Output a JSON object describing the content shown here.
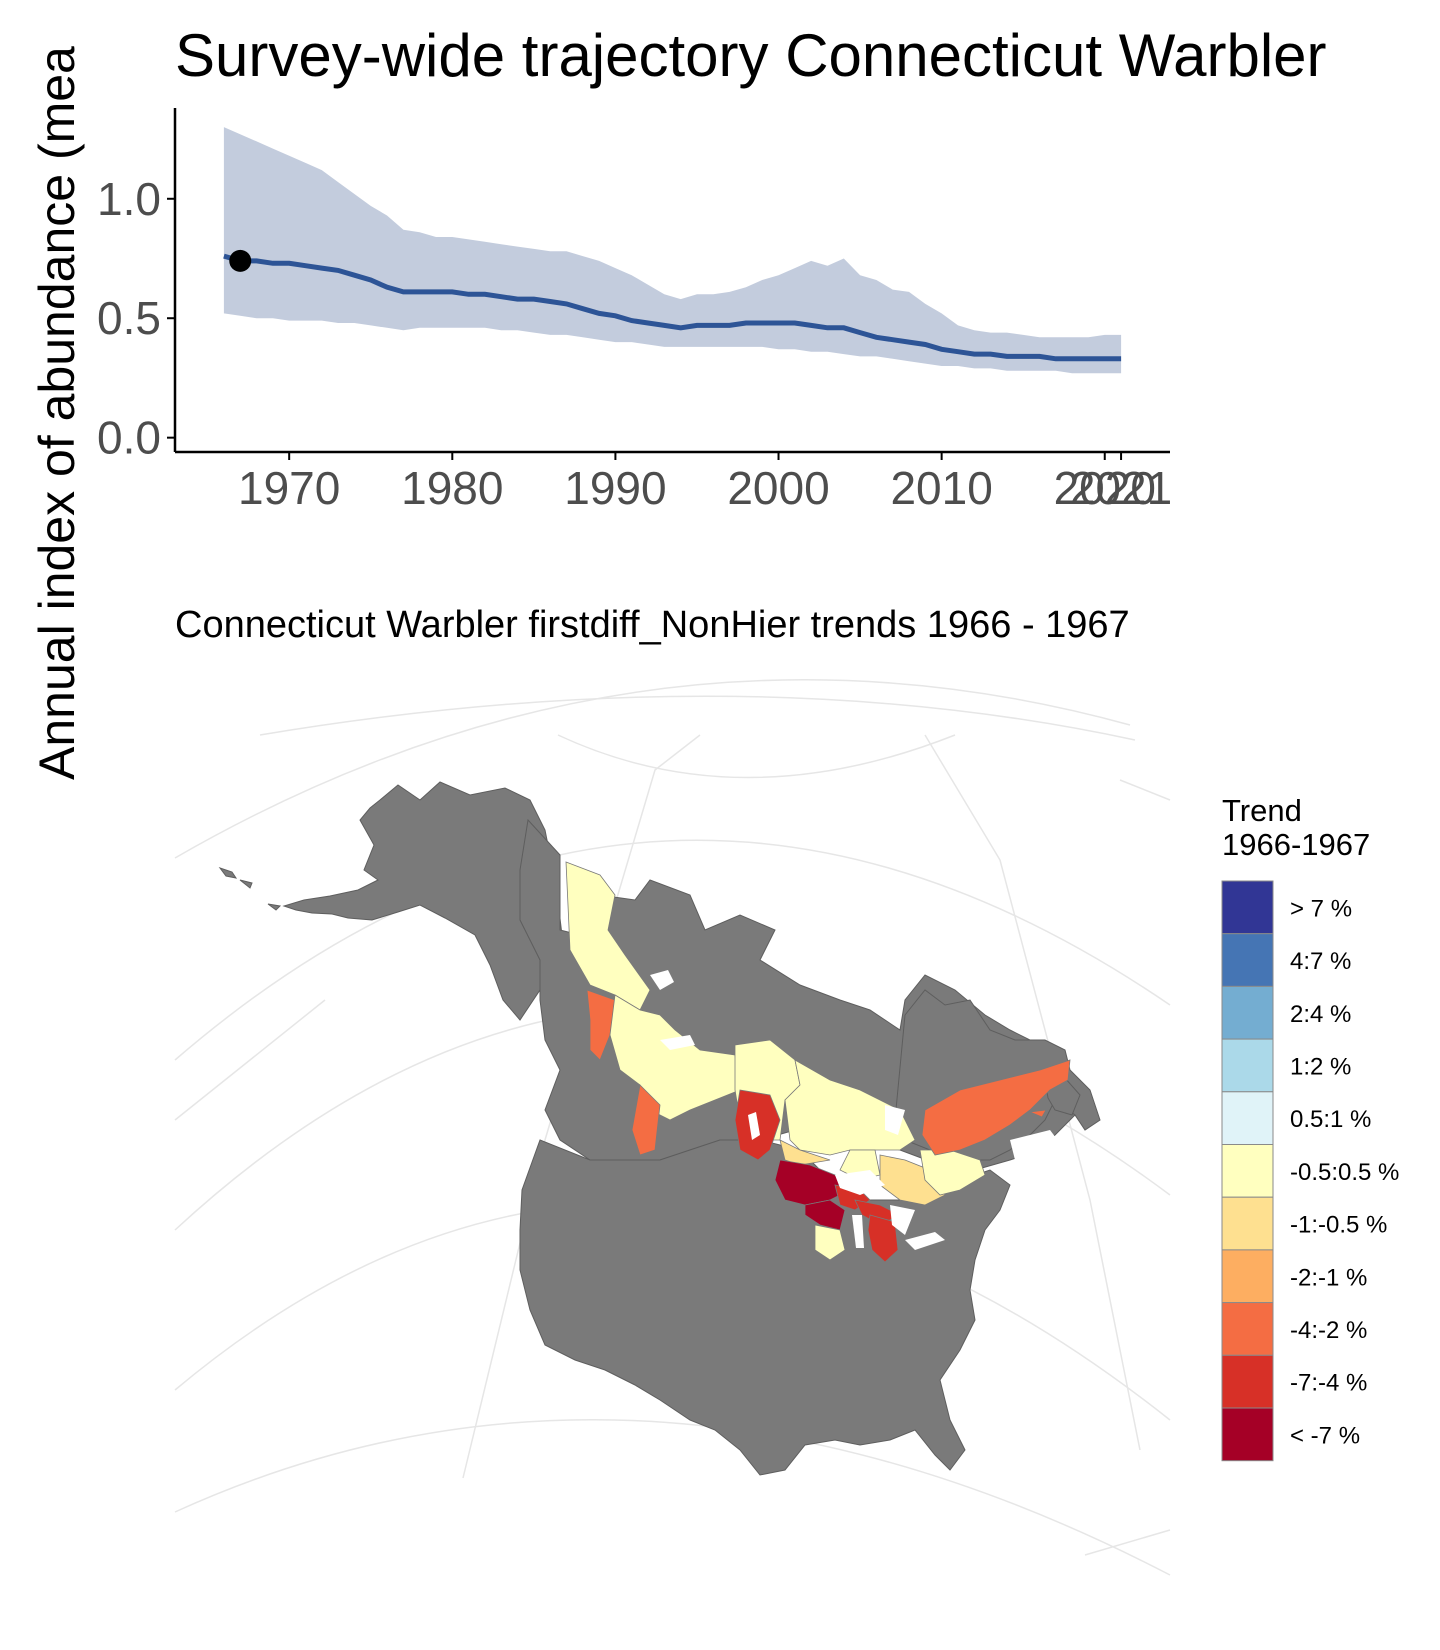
{
  "colors": {
    "ribbon": "#c3ccdd",
    "line": "#2d5496",
    "point": "#000000",
    "land": "#7a7a7a",
    "graticule": "#e6e6e6",
    "axis": "#000000",
    "tick_label": "#4d4d4d"
  },
  "chart_data": [
    {
      "type": "line",
      "title": "Survey-wide trajectory Connecticut Warbler",
      "ylabel": "Annual index of abundance (mea",
      "xlabel": "",
      "xlim": [
        1963,
        2024
      ],
      "ylim": [
        -0.06,
        1.38
      ],
      "x_ticks": [
        1970,
        1980,
        1990,
        2000,
        2010,
        2020,
        2021
      ],
      "x_tick_labels": [
        "1970",
        "1980",
        "1990",
        "2000",
        "2010",
        "2020",
        "2021"
      ],
      "y_ticks": [
        0.0,
        0.5,
        1.0
      ],
      "y_tick_labels": [
        "0.0",
        "0.5",
        "1.0"
      ],
      "grid": false,
      "series": [
        {
          "x": [
            1966,
            1967,
            1968,
            1969,
            1970,
            1971,
            1972,
            1973,
            1974,
            1975,
            1976,
            1977,
            1978,
            1979,
            1980,
            1981,
            1982,
            1983,
            1984,
            1985,
            1986,
            1987,
            1988,
            1989,
            1990,
            1991,
            1992,
            1993,
            1994,
            1995,
            1996,
            1997,
            1998,
            1999,
            2000,
            2001,
            2002,
            2003,
            2004,
            2005,
            2006,
            2007,
            2008,
            2009,
            2010,
            2011,
            2012,
            2013,
            2014,
            2015,
            2016,
            2017,
            2018,
            2019,
            2020,
            2021
          ],
          "values": [
            0.76,
            0.74,
            0.74,
            0.73,
            0.73,
            0.72,
            0.71,
            0.7,
            0.68,
            0.66,
            0.63,
            0.61,
            0.61,
            0.61,
            0.61,
            0.6,
            0.6,
            0.59,
            0.58,
            0.58,
            0.57,
            0.56,
            0.54,
            0.52,
            0.51,
            0.49,
            0.48,
            0.47,
            0.46,
            0.47,
            0.47,
            0.47,
            0.48,
            0.48,
            0.48,
            0.48,
            0.47,
            0.46,
            0.46,
            0.44,
            0.42,
            0.41,
            0.4,
            0.39,
            0.37,
            0.36,
            0.35,
            0.35,
            0.34,
            0.34,
            0.34,
            0.33,
            0.33,
            0.33,
            0.33,
            0.33
          ],
          "lower": [
            0.52,
            0.51,
            0.5,
            0.5,
            0.49,
            0.49,
            0.49,
            0.48,
            0.48,
            0.47,
            0.46,
            0.45,
            0.46,
            0.46,
            0.46,
            0.46,
            0.46,
            0.45,
            0.45,
            0.44,
            0.43,
            0.43,
            0.42,
            0.41,
            0.4,
            0.4,
            0.39,
            0.38,
            0.38,
            0.38,
            0.38,
            0.38,
            0.38,
            0.38,
            0.37,
            0.37,
            0.36,
            0.36,
            0.35,
            0.34,
            0.34,
            0.33,
            0.32,
            0.31,
            0.3,
            0.3,
            0.29,
            0.29,
            0.28,
            0.28,
            0.28,
            0.28,
            0.27,
            0.27,
            0.27,
            0.27
          ],
          "upper": [
            1.3,
            1.27,
            1.24,
            1.21,
            1.18,
            1.15,
            1.12,
            1.07,
            1.02,
            0.97,
            0.93,
            0.87,
            0.86,
            0.84,
            0.84,
            0.83,
            0.82,
            0.81,
            0.8,
            0.79,
            0.78,
            0.78,
            0.76,
            0.74,
            0.71,
            0.68,
            0.64,
            0.6,
            0.58,
            0.6,
            0.6,
            0.61,
            0.63,
            0.66,
            0.68,
            0.71,
            0.74,
            0.72,
            0.75,
            0.68,
            0.66,
            0.62,
            0.61,
            0.56,
            0.52,
            0.47,
            0.45,
            0.44,
            0.44,
            0.43,
            0.42,
            0.42,
            0.42,
            0.42,
            0.43,
            0.43
          ]
        }
      ],
      "highlight_point": {
        "x": 1967,
        "y": 0.74
      }
    },
    {
      "type": "heatmap",
      "subtitle": "Connecticut Warbler firstdiff_NonHier trends 1966 - 1967",
      "legend_title": [
        "Trend",
        "1966-1967"
      ],
      "legend_position": "right",
      "legend": [
        {
          "label": "> 7 %",
          "color": "#313695"
        },
        {
          "label": "4:7 %",
          "color": "#4575b4"
        },
        {
          "label": "2:4 %",
          "color": "#74add1"
        },
        {
          "label": "1:2 %",
          "color": "#abd9e9"
        },
        {
          "label": "0.5:1 %",
          "color": "#e0f3f8"
        },
        {
          "label": "-0.5:0.5 %",
          "color": "#ffffbf"
        },
        {
          "label": "-1:-0.5 %",
          "color": "#fee090"
        },
        {
          "label": "-2:-1 %",
          "color": "#fdae61"
        },
        {
          "label": "-4:-2 %",
          "color": "#f46d43"
        },
        {
          "label": "-7:-4 %",
          "color": "#d73027"
        },
        {
          "label": "< -7 %",
          "color": "#a50026"
        }
      ]
    }
  ]
}
